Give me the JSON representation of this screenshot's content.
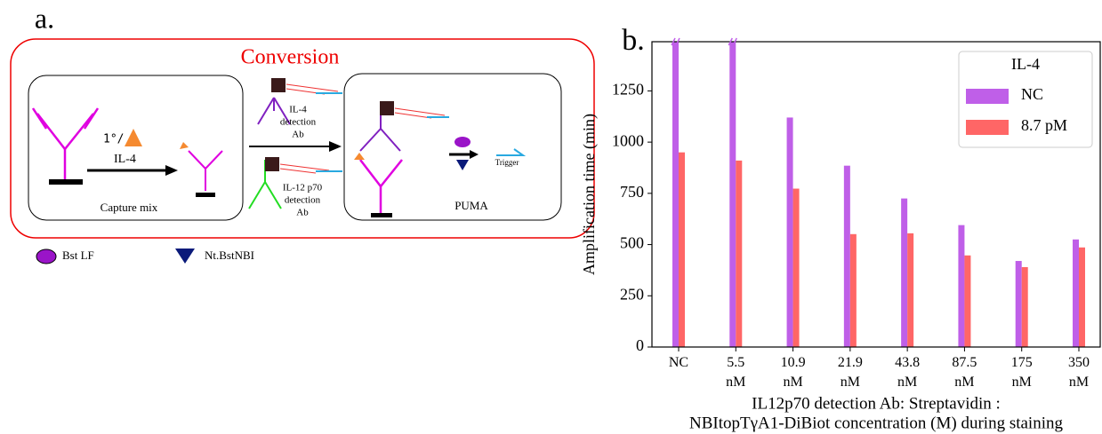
{
  "panel_a": {
    "label": "a.",
    "title": "Conversion",
    "capture_box": "Capture mix",
    "primary": "1°/",
    "analyte": "IL-4",
    "il4_ab": [
      "IL-4",
      "detection",
      "Ab"
    ],
    "il12_ab": [
      "IL-12 p70",
      "detection",
      "Ab"
    ],
    "puma_box": "PUMA",
    "trigger": "Trigger",
    "legend": [
      "Bst LF",
      "Nt.BstNBI"
    ]
  },
  "chart_data": {
    "type": "bar",
    "panel_label": "b.",
    "ylabel": "Amplification time (min)",
    "xlabel": [
      "IL12p70 detection Ab: Streptavidin :",
      "NBItopTγA1-DiBiot concentration (M) during staining"
    ],
    "categories": [
      "NC",
      "5.5 nM",
      "10.9 nM",
      "21.9 nM",
      "43.8 nM",
      "87.5 nM",
      "175 nM",
      "350 nM"
    ],
    "series": [
      {
        "name": "NC",
        "color": "#bf5fe8",
        "values": [
          1490,
          1490,
          1120,
          885,
          725,
          595,
          420,
          525
        ]
      },
      {
        "name": "8.7 pM",
        "color": "#ff6666",
        "values": [
          950,
          910,
          773,
          551,
          555,
          447,
          390,
          486
        ]
      }
    ],
    "ylim": [
      0,
      1490
    ],
    "yticks": [
      0,
      250,
      500,
      750,
      1000,
      1250
    ],
    "legend_title": "IL-4",
    "legend_loc": "upper right"
  }
}
